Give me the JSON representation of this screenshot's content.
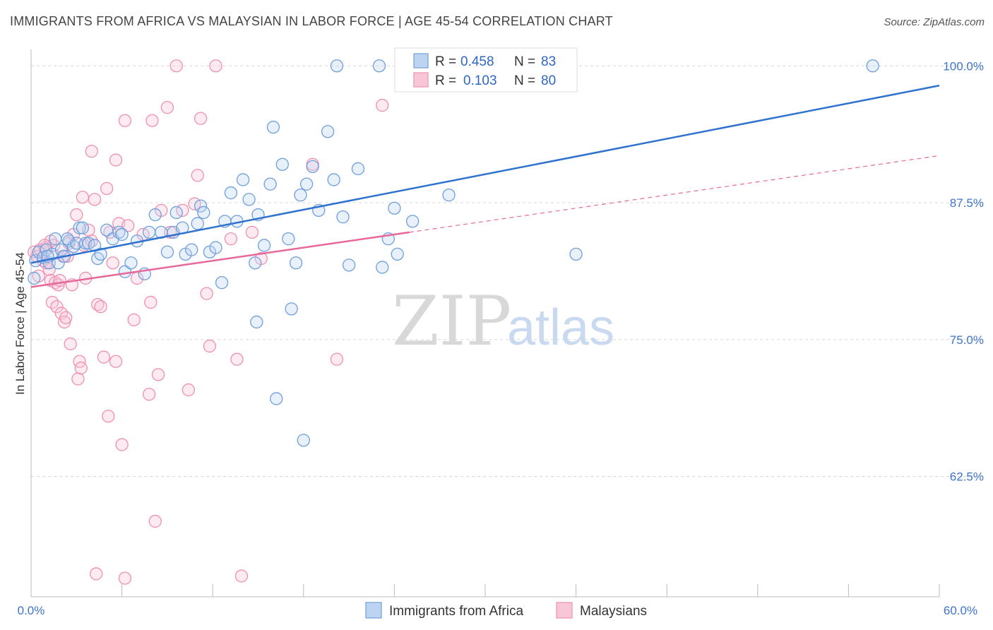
{
  "title": "IMMIGRANTS FROM AFRICA VS MALAYSIAN IN LABOR FORCE | AGE 45-54 CORRELATION CHART",
  "source": "Source: ZipAtlas.com",
  "watermark": {
    "zip": "ZIP",
    "atlas": "atlas"
  },
  "colors": {
    "blue": "#6f9fdc",
    "blue_line": "#2f72cf",
    "pink": "#f090b0",
    "pink_line": "#e8679a",
    "tick_label": "#3d74c9",
    "grid": "#d9d9d9"
  },
  "legend": {
    "r_label": "R =",
    "n_label": "N =",
    "blue": {
      "r": "0.458",
      "n": "83"
    },
    "pink": {
      "r": "0.103",
      "n": "80"
    }
  },
  "chart_data": {
    "type": "scatter",
    "title": "IMMIGRANTS FROM AFRICA VS MALAYSIAN IN LABOR FORCE | AGE 45-54 CORRELATION CHART",
    "xlabel": "",
    "ylabel": "In Labor Force | Age 45-54",
    "xlim": [
      0,
      60
    ],
    "ylim": [
      51.5,
      101.5
    ],
    "x_tick_labels": [
      "0.0%",
      "60.0%"
    ],
    "y_ticks": [
      62.5,
      75.0,
      87.5,
      100.0
    ],
    "y_tick_labels": [
      "62.5%",
      "75.0%",
      "87.5%",
      "100.0%"
    ],
    "grid": "horizontal dashed",
    "legend_position": "top-center",
    "series": [
      {
        "name": "Immigrants from Africa",
        "color": "#6f9fdc",
        "trend": {
          "x": [
            0,
            60
          ],
          "y": [
            82.0,
            98.2
          ],
          "style": "solid"
        },
        "points": [
          [
            0.3,
            82.2
          ],
          [
            0.5,
            83.0
          ],
          [
            0.8,
            82.5
          ],
          [
            1.0,
            83.2
          ],
          [
            1.2,
            82.0
          ],
          [
            1.4,
            82.8
          ],
          [
            1.6,
            84.2
          ],
          [
            1.8,
            82.0
          ],
          [
            2.0,
            83.2
          ],
          [
            2.2,
            82.6
          ],
          [
            2.5,
            84.0
          ],
          [
            2.8,
            83.5
          ],
          [
            3.0,
            83.8
          ],
          [
            3.2,
            85.2
          ],
          [
            3.4,
            85.2
          ],
          [
            3.6,
            83.8
          ],
          [
            3.8,
            83.8
          ],
          [
            4.2,
            83.6
          ],
          [
            4.4,
            82.4
          ],
          [
            4.6,
            82.8
          ],
          [
            5.0,
            85.0
          ],
          [
            5.4,
            84.2
          ],
          [
            5.8,
            84.8
          ],
          [
            6.2,
            81.2
          ],
          [
            6.6,
            82.0
          ],
          [
            7.0,
            84.0
          ],
          [
            7.5,
            81.0
          ],
          [
            7.8,
            84.8
          ],
          [
            8.2,
            86.4
          ],
          [
            8.6,
            84.8
          ],
          [
            9.0,
            83.0
          ],
          [
            9.4,
            84.8
          ],
          [
            9.6,
            86.6
          ],
          [
            10.0,
            85.2
          ],
          [
            10.2,
            82.8
          ],
          [
            10.6,
            83.2
          ],
          [
            11.0,
            85.6
          ],
          [
            11.2,
            87.2
          ],
          [
            11.4,
            86.6
          ],
          [
            11.8,
            83.0
          ],
          [
            12.2,
            83.4
          ],
          [
            12.6,
            80.2
          ],
          [
            12.8,
            85.8
          ],
          [
            13.2,
            88.4
          ],
          [
            13.6,
            85.8
          ],
          [
            14.0,
            89.6
          ],
          [
            14.4,
            87.8
          ],
          [
            14.8,
            82.0
          ],
          [
            14.9,
            76.6
          ],
          [
            15.0,
            86.4
          ],
          [
            15.4,
            83.6
          ],
          [
            15.8,
            89.2
          ],
          [
            16.0,
            94.4
          ],
          [
            16.2,
            69.6
          ],
          [
            16.6,
            91.0
          ],
          [
            17.0,
            84.2
          ],
          [
            17.2,
            77.8
          ],
          [
            17.5,
            82.0
          ],
          [
            17.8,
            88.2
          ],
          [
            18.0,
            65.8
          ],
          [
            18.2,
            89.2
          ],
          [
            18.6,
            90.8
          ],
          [
            19.0,
            86.8
          ],
          [
            19.6,
            94.0
          ],
          [
            20.0,
            89.6
          ],
          [
            20.2,
            100.0
          ],
          [
            20.6,
            86.2
          ],
          [
            21.0,
            81.8
          ],
          [
            21.6,
            90.6
          ],
          [
            23.0,
            100.0
          ],
          [
            23.2,
            81.6
          ],
          [
            23.6,
            84.2
          ],
          [
            24.0,
            87.0
          ],
          [
            24.2,
            82.8
          ],
          [
            25.2,
            85.8
          ],
          [
            27.6,
            88.2
          ],
          [
            30.0,
            100.0
          ],
          [
            36.0,
            82.8
          ],
          [
            55.6,
            100.0
          ],
          [
            0.2,
            80.6
          ],
          [
            1.1,
            82.6
          ],
          [
            2.4,
            84.2
          ],
          [
            6.0,
            84.6
          ]
        ]
      },
      {
        "name": "Malaysians",
        "color": "#f090b0",
        "trend": {
          "x": [
            0,
            25
          ],
          "y": [
            79.8,
            84.8
          ],
          "style": "solid",
          "extension": {
            "x": [
              25,
              60
            ],
            "y": [
              84.8,
              91.8
            ],
            "style": "dashed"
          }
        },
        "points": [
          [
            0.2,
            83.0
          ],
          [
            0.4,
            82.6
          ],
          [
            0.6,
            83.2
          ],
          [
            0.8,
            82.2
          ],
          [
            1.0,
            83.4
          ],
          [
            1.2,
            81.4
          ],
          [
            1.3,
            80.4
          ],
          [
            1.4,
            78.4
          ],
          [
            1.5,
            83.6
          ],
          [
            1.6,
            80.2
          ],
          [
            1.7,
            78.0
          ],
          [
            1.8,
            80.0
          ],
          [
            1.9,
            80.4
          ],
          [
            2.0,
            77.4
          ],
          [
            2.1,
            82.6
          ],
          [
            2.2,
            76.6
          ],
          [
            2.3,
            77.0
          ],
          [
            2.4,
            82.6
          ],
          [
            2.5,
            83.8
          ],
          [
            2.6,
            74.6
          ],
          [
            2.8,
            84.6
          ],
          [
            3.0,
            86.4
          ],
          [
            3.1,
            71.4
          ],
          [
            3.2,
            73.0
          ],
          [
            3.3,
            72.4
          ],
          [
            3.4,
            88.0
          ],
          [
            3.5,
            83.6
          ],
          [
            3.6,
            80.6
          ],
          [
            3.8,
            85.0
          ],
          [
            4.0,
            92.2
          ],
          [
            4.2,
            87.8
          ],
          [
            4.4,
            78.2
          ],
          [
            4.6,
            78.0
          ],
          [
            4.8,
            73.4
          ],
          [
            5.0,
            88.8
          ],
          [
            5.1,
            68.0
          ],
          [
            5.2,
            84.8
          ],
          [
            5.4,
            82.0
          ],
          [
            5.6,
            91.4
          ],
          [
            5.6,
            73.0
          ],
          [
            5.8,
            85.6
          ],
          [
            6.0,
            65.4
          ],
          [
            6.2,
            95.0
          ],
          [
            6.4,
            85.4
          ],
          [
            6.8,
            76.8
          ],
          [
            7.0,
            80.6
          ],
          [
            7.4,
            84.6
          ],
          [
            7.8,
            70.0
          ],
          [
            8.0,
            95.0
          ],
          [
            8.2,
            58.4
          ],
          [
            8.4,
            71.8
          ],
          [
            8.6,
            86.8
          ],
          [
            9.0,
            96.2
          ],
          [
            9.2,
            84.8
          ],
          [
            9.6,
            100.0
          ],
          [
            10.0,
            86.8
          ],
          [
            10.4,
            70.4
          ],
          [
            10.8,
            87.4
          ],
          [
            11.0,
            90.0
          ],
          [
            11.2,
            95.2
          ],
          [
            11.6,
            79.2
          ],
          [
            11.8,
            74.4
          ],
          [
            12.2,
            100.0
          ],
          [
            13.2,
            84.2
          ],
          [
            13.6,
            73.2
          ],
          [
            14.6,
            84.8
          ],
          [
            15.2,
            82.4
          ],
          [
            18.6,
            91.0
          ],
          [
            20.2,
            73.2
          ],
          [
            23.2,
            96.4
          ],
          [
            4.3,
            53.6
          ],
          [
            6.2,
            53.2
          ],
          [
            13.9,
            53.4
          ],
          [
            0.5,
            80.8
          ],
          [
            1.0,
            82.0
          ],
          [
            2.7,
            80.0
          ],
          [
            4.0,
            84.0
          ],
          [
            7.9,
            78.4
          ],
          [
            1.3,
            84.0
          ],
          [
            0.9,
            83.6
          ]
        ]
      }
    ]
  },
  "bottom_legend": {
    "blue_label": "Immigrants from Africa",
    "pink_label": "Malaysians"
  }
}
